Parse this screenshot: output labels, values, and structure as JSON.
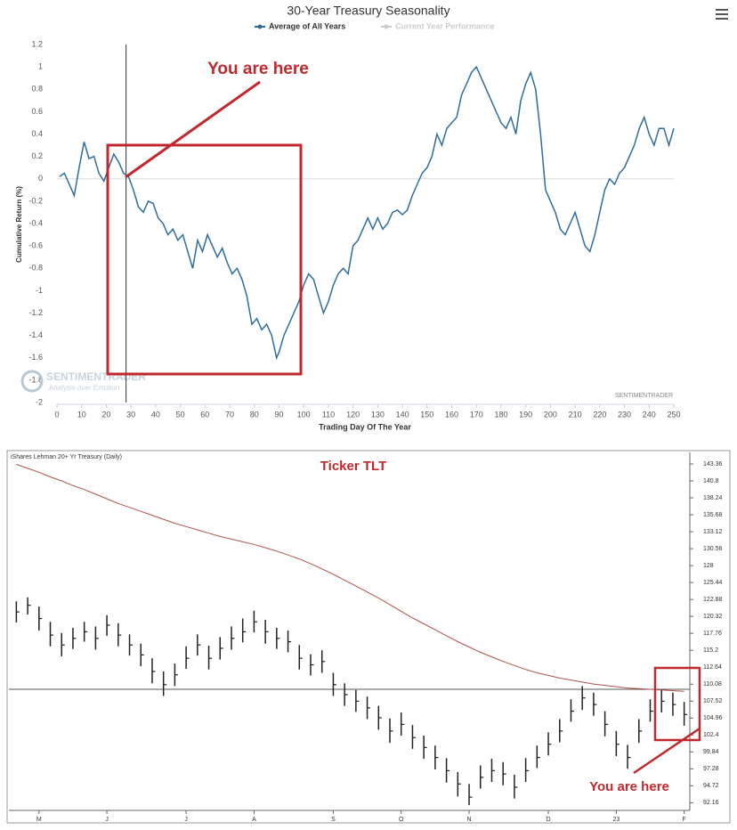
{
  "chart_data": [
    {
      "type": "line",
      "title": "30-Year Treasury Seasonality",
      "y_label": "Cumulative Return (%)",
      "x_label": "Trading Day Of The Year",
      "annotations": [
        "You are here"
      ],
      "watermark": [
        "SENTIMENTRADER",
        "Analysis over Emotion"
      ],
      "credit": "SENTIMENTRADER",
      "vline": 28,
      "zero_line": true,
      "xlim": [
        0,
        250
      ],
      "xticks": [
        0,
        10,
        20,
        30,
        40,
        50,
        60,
        70,
        80,
        90,
        100,
        110,
        120,
        130,
        140,
        150,
        160,
        170,
        180,
        190,
        200,
        210,
        220,
        230,
        240,
        250
      ],
      "ylim": [
        -2,
        1.2
      ],
      "yticks": [
        -2,
        -1.8,
        -1.6,
        -1.4,
        -1.2,
        -1,
        -0.8,
        -0.6,
        -0.4,
        -0.2,
        0,
        0.2,
        0.4,
        0.6,
        0.8,
        1,
        1.2
      ],
      "x": [
        1,
        3,
        5,
        7,
        9,
        11,
        13,
        15,
        17,
        19,
        21,
        23,
        25,
        27,
        29,
        31,
        33,
        35,
        37,
        39,
        41,
        43,
        45,
        47,
        49,
        51,
        53,
        55,
        57,
        59,
        61,
        63,
        65,
        67,
        69,
        71,
        73,
        75,
        77,
        79,
        81,
        83,
        85,
        87,
        89,
        90,
        92,
        94,
        96,
        98,
        100,
        102,
        104,
        106,
        108,
        110,
        112,
        114,
        116,
        118,
        120,
        122,
        124,
        126,
        128,
        130,
        132,
        134,
        136,
        138,
        140,
        142,
        144,
        146,
        148,
        150,
        152,
        154,
        156,
        158,
        160,
        162,
        164,
        166,
        168,
        170,
        172,
        174,
        176,
        178,
        180,
        182,
        184,
        186,
        188,
        190,
        192,
        194,
        196,
        198,
        200,
        202,
        204,
        206,
        208,
        210,
        212,
        214,
        216,
        218,
        220,
        222,
        224,
        226,
        228,
        230,
        232,
        234,
        236,
        238,
        240,
        242,
        244,
        246,
        248,
        250
      ],
      "series": [
        {
          "name": "Average of All Years",
          "color": "#2e6c9e",
          "values": [
            0.02,
            0.05,
            -0.05,
            -0.15,
            0.1,
            0.33,
            0.18,
            0.2,
            0.05,
            -0.02,
            0.1,
            0.22,
            0.15,
            0.05,
            0.02,
            -0.1,
            -0.25,
            -0.3,
            -0.2,
            -0.22,
            -0.35,
            -0.4,
            -0.5,
            -0.45,
            -0.55,
            -0.5,
            -0.65,
            -0.8,
            -0.55,
            -0.65,
            -0.5,
            -0.6,
            -0.7,
            -0.62,
            -0.75,
            -0.85,
            -0.8,
            -0.9,
            -1.05,
            -1.3,
            -1.25,
            -1.35,
            -1.3,
            -1.4,
            -1.6,
            -1.55,
            -1.4,
            -1.3,
            -1.2,
            -1.1,
            -0.95,
            -0.85,
            -0.9,
            -1.05,
            -1.2,
            -1.1,
            -0.95,
            -0.85,
            -0.8,
            -0.85,
            -0.6,
            -0.55,
            -0.45,
            -0.35,
            -0.45,
            -0.35,
            -0.45,
            -0.4,
            -0.3,
            -0.28,
            -0.32,
            -0.28,
            -0.15,
            -0.05,
            0.05,
            0.1,
            0.2,
            0.4,
            0.3,
            0.45,
            0.5,
            0.55,
            0.75,
            0.85,
            0.95,
            1.0,
            0.9,
            0.8,
            0.7,
            0.6,
            0.5,
            0.45,
            0.55,
            0.4,
            0.7,
            0.85,
            0.95,
            0.8,
            0.4,
            -0.1,
            -0.2,
            -0.3,
            -0.45,
            -0.5,
            -0.4,
            -0.3,
            -0.45,
            -0.6,
            -0.65,
            -0.5,
            -0.3,
            -0.1,
            0,
            -0.05,
            0.05,
            0.1,
            0.2,
            0.3,
            0.45,
            0.55,
            0.4,
            0.3,
            0.45,
            0.45,
            0.3,
            0.45
          ]
        },
        {
          "name": "Current Year Performance",
          "color": "#cccccc",
          "values": [
            null,
            null,
            null,
            null,
            null,
            null,
            null,
            null,
            null,
            null,
            null,
            null,
            null,
            null,
            null,
            null,
            null,
            null,
            null,
            null,
            null,
            null,
            null,
            null,
            null,
            null,
            null,
            null,
            null,
            null,
            null,
            null,
            null,
            null,
            null,
            null,
            null,
            null,
            null,
            null,
            null,
            null,
            null,
            null,
            null,
            null,
            null,
            null,
            null,
            null,
            null,
            null,
            null,
            null,
            null,
            null,
            null,
            null,
            null,
            null,
            null,
            null,
            null,
            null,
            null,
            null,
            null,
            null,
            null,
            null,
            null,
            null,
            null,
            null,
            null,
            null,
            null,
            null,
            null,
            null,
            null,
            null,
            null,
            null,
            null,
            null,
            null,
            null,
            null,
            null,
            null,
            null,
            null,
            null,
            null,
            null,
            null,
            null,
            null,
            null,
            null,
            null,
            null,
            null,
            null,
            null,
            null,
            null,
            null,
            null,
            null,
            null,
            null,
            null,
            null,
            null,
            null,
            null,
            null,
            null,
            null,
            null,
            null,
            null,
            null,
            null
          ]
        }
      ]
    },
    {
      "type": "ohlc",
      "title": "iShares Lehman 20+ Yr Treasury (Daily)",
      "annotations": [
        "Ticker TLT",
        "You are here"
      ],
      "color": "#222222",
      "categories": [
        null,
        null,
        "M",
        null,
        null,
        null,
        null,
        null,
        "J",
        null,
        null,
        null,
        null,
        null,
        null,
        "J",
        null,
        null,
        null,
        null,
        null,
        "A",
        null,
        null,
        null,
        null,
        null,
        null,
        "S",
        null,
        null,
        null,
        null,
        null,
        "O",
        null,
        null,
        null,
        null,
        null,
        "N",
        null,
        null,
        null,
        null,
        null,
        null,
        "D",
        null,
        null,
        null,
        null,
        null,
        "23",
        null,
        null,
        null,
        null,
        null,
        "F"
      ],
      "high": [
        122.6,
        123.2,
        121.8,
        119.5,
        117.8,
        118.6,
        119.5,
        118.8,
        120.5,
        119.3,
        117.6,
        116.2,
        114,
        112,
        113.2,
        115.8,
        117.6,
        115.9,
        117.2,
        118.8,
        120,
        121.2,
        119.8,
        118.6,
        118.2,
        116,
        114.6,
        115.2,
        111.8,
        110.2,
        109.2,
        108.2,
        106.8,
        104.9,
        105.8,
        103.9,
        102.3,
        100.8,
        98.9,
        96.8,
        95,
        97.8,
        98.8,
        98.3,
        96.4,
        98.9,
        100.8,
        102.8,
        104.8,
        107.8,
        109.8,
        108.8,
        106,
        103,
        100.9,
        104.8,
        107.8,
        109.2,
        108.8,
        107.4
      ],
      "low": [
        119.4,
        120.6,
        118.2,
        115.8,
        114.3,
        115.4,
        116.5,
        115.3,
        117.4,
        115.8,
        114.4,
        112.8,
        110.2,
        108.3,
        109.8,
        112.4,
        114.4,
        112.3,
        113.8,
        115.3,
        116.4,
        117.9,
        116.2,
        115.4,
        114.9,
        112.3,
        111.4,
        111.8,
        108.3,
        106.8,
        105.9,
        104.8,
        103.2,
        101.2,
        102.3,
        100.3,
        98.8,
        97.2,
        95.2,
        93.1,
        91.8,
        94.3,
        95.3,
        94.8,
        92.8,
        95.3,
        97.4,
        99.3,
        101.3,
        104.4,
        106.2,
        105.3,
        102.2,
        99.2,
        97.3,
        101.2,
        104.4,
        105.8,
        105.3,
        103.8
      ],
      "close": [
        121,
        122,
        120,
        117.5,
        116,
        117,
        118,
        117,
        119,
        117.5,
        116,
        114.5,
        112,
        110,
        111.5,
        114,
        116,
        114,
        115.5,
        117,
        118,
        119.5,
        118,
        117,
        116.5,
        114,
        113,
        113.5,
        110,
        108.5,
        107.5,
        106.5,
        105,
        103,
        104,
        102,
        100.5,
        99,
        97,
        95,
        93,
        96,
        97,
        96.5,
        94.5,
        97,
        99,
        101,
        103,
        106,
        108,
        107,
        104,
        101,
        99,
        103,
        106,
        107.5,
        107,
        105.5
      ],
      "moving_average": {
        "color": "#b0504a",
        "values": [
          143.3,
          142.7,
          142.1,
          141.4,
          140.8,
          140.1,
          139.5,
          138.8,
          138.1,
          137.4,
          136.8,
          136.2,
          135.6,
          135.0,
          134.4,
          133.9,
          133.4,
          132.9,
          132.4,
          132.0,
          131.6,
          131.2,
          130.7,
          130.2,
          129.6,
          129.0,
          128.3,
          127.5,
          126.7,
          125.8,
          124.9,
          124.0,
          123.1,
          122.1,
          121.1,
          120.1,
          119.2,
          118.3,
          117.4,
          116.5,
          115.7,
          114.9,
          114.2,
          113.5,
          112.9,
          112.3,
          111.8,
          111.4,
          111.0,
          110.7,
          110.4,
          110.1,
          109.9,
          109.7,
          109.5,
          109.4,
          109.3,
          109.2,
          109.1,
          109.0
        ]
      },
      "reference_line": 109.3,
      "ylim": [
        91,
        144.3
      ],
      "yticks": [
        143.36,
        140.8,
        138.24,
        135.68,
        133.12,
        130.56,
        128,
        125.44,
        122.88,
        120.32,
        117.76,
        115.2,
        112.64,
        110.08,
        107.52,
        104.96,
        102.4,
        99.84,
        97.28,
        94.72,
        92.16
      ]
    }
  ]
}
